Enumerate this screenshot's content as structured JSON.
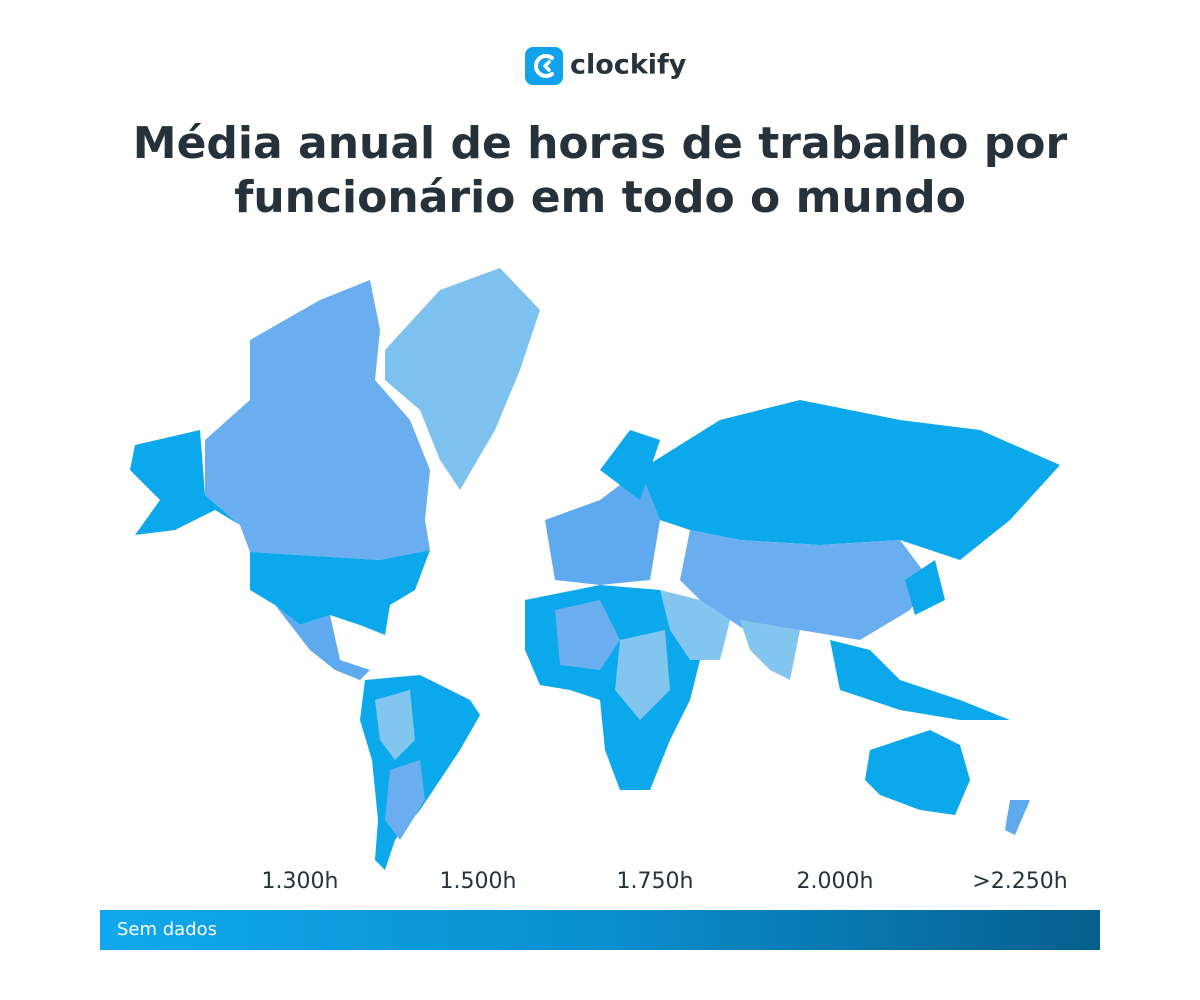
{
  "logo": {
    "text": "clockify"
  },
  "header": {
    "title_lines": [
      "Média anual de horas de trabalho por",
      "funcionário em todo o mundo"
    ]
  },
  "legend": {
    "labels": [
      "1.300h",
      "1.500h",
      "1.750h",
      "2.000h",
      ">2.250h"
    ],
    "no_data": "Sem dados"
  }
}
